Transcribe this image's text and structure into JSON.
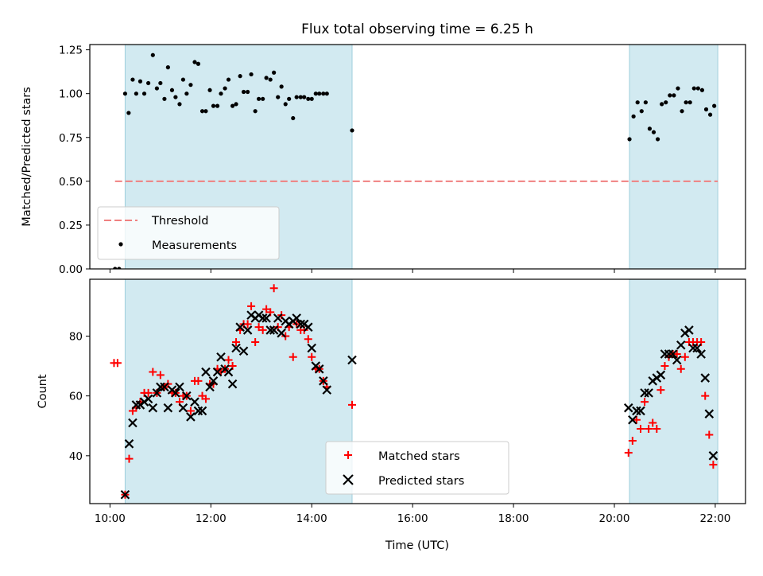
{
  "chart_data": {
    "title": "Flux total observing time = 6.25 h",
    "xlabel": "Time (UTC)",
    "x_unit": "hours UTC",
    "xlim": [
      9.6,
      22.6
    ],
    "x_ticks": [
      {
        "value": 10,
        "label": "10:00"
      },
      {
        "value": 12,
        "label": "12:00"
      },
      {
        "value": 14,
        "label": "14:00"
      },
      {
        "value": 16,
        "label": "16:00"
      },
      {
        "value": 18,
        "label": "18:00"
      },
      {
        "value": 20,
        "label": "20:00"
      },
      {
        "value": 22,
        "label": "22:00"
      }
    ],
    "shaded_intervals": [
      [
        10.3,
        14.8
      ],
      [
        20.3,
        22.05
      ]
    ],
    "shade_color": "#add8e6",
    "panels": [
      {
        "type": "scatter",
        "ylabel": "Matched/Predicted stars",
        "ylim": [
          0,
          1.28
        ],
        "y_ticks": [
          {
            "value": 0.0,
            "label": "0.00"
          },
          {
            "value": 0.25,
            "label": "0.25"
          },
          {
            "value": 0.5,
            "label": "0.50"
          },
          {
            "value": 0.75,
            "label": "0.75"
          },
          {
            "value": 1.0,
            "label": "1.00"
          },
          {
            "value": 1.25,
            "label": "1.25"
          }
        ],
        "legend": [
          "Threshold",
          "Measurements"
        ],
        "legend_position": "lower-left",
        "threshold": {
          "name": "Threshold",
          "y": 0.5,
          "x_range": [
            10.1,
            22.05
          ],
          "color": "#f08080"
        },
        "measurements": {
          "name": "Measurements",
          "color": "#000000",
          "points": [
            [
              10.1,
              0.0
            ],
            [
              10.18,
              0.0
            ],
            [
              10.3,
              1.0
            ],
            [
              10.37,
              0.89
            ],
            [
              10.45,
              1.08
            ],
            [
              10.52,
              1.0
            ],
            [
              10.6,
              1.07
            ],
            [
              10.68,
              1.0
            ],
            [
              10.76,
              1.06
            ],
            [
              10.85,
              1.22
            ],
            [
              10.93,
              1.03
            ],
            [
              11.0,
              1.06
            ],
            [
              11.08,
              0.97
            ],
            [
              11.15,
              1.15
            ],
            [
              11.23,
              1.02
            ],
            [
              11.3,
              0.98
            ],
            [
              11.38,
              0.94
            ],
            [
              11.45,
              1.08
            ],
            [
              11.52,
              1.0
            ],
            [
              11.6,
              1.05
            ],
            [
              11.68,
              1.18
            ],
            [
              11.75,
              1.17
            ],
            [
              11.83,
              0.9
            ],
            [
              11.9,
              0.9
            ],
            [
              11.98,
              1.02
            ],
            [
              12.05,
              0.93
            ],
            [
              12.13,
              0.93
            ],
            [
              12.2,
              1.0
            ],
            [
              12.28,
              1.03
            ],
            [
              12.35,
              1.08
            ],
            [
              12.43,
              0.93
            ],
            [
              12.5,
              0.94
            ],
            [
              12.58,
              1.1
            ],
            [
              12.65,
              1.01
            ],
            [
              12.73,
              1.01
            ],
            [
              12.8,
              1.11
            ],
            [
              12.88,
              0.9
            ],
            [
              12.95,
              0.97
            ],
            [
              13.03,
              0.97
            ],
            [
              13.1,
              1.09
            ],
            [
              13.18,
              1.08
            ],
            [
              13.25,
              1.12
            ],
            [
              13.33,
              0.98
            ],
            [
              13.4,
              1.04
            ],
            [
              13.48,
              0.94
            ],
            [
              13.55,
              0.97
            ],
            [
              13.63,
              0.86
            ],
            [
              13.7,
              0.98
            ],
            [
              13.78,
              0.98
            ],
            [
              13.85,
              0.98
            ],
            [
              13.93,
              0.97
            ],
            [
              14.0,
              0.97
            ],
            [
              14.08,
              1.0
            ],
            [
              14.15,
              1.0
            ],
            [
              14.23,
              1.0
            ],
            [
              14.3,
              1.0
            ],
            [
              14.8,
              0.79
            ],
            [
              20.3,
              0.74
            ],
            [
              20.38,
              0.87
            ],
            [
              20.46,
              0.95
            ],
            [
              20.54,
              0.9
            ],
            [
              20.62,
              0.95
            ],
            [
              20.7,
              0.8
            ],
            [
              20.78,
              0.78
            ],
            [
              20.86,
              0.74
            ],
            [
              20.94,
              0.94
            ],
            [
              21.02,
              0.95
            ],
            [
              21.1,
              0.99
            ],
            [
              21.18,
              0.99
            ],
            [
              21.26,
              1.03
            ],
            [
              21.34,
              0.9
            ],
            [
              21.42,
              0.95
            ],
            [
              21.5,
              0.95
            ],
            [
              21.58,
              1.03
            ],
            [
              21.66,
              1.03
            ],
            [
              21.74,
              1.02
            ],
            [
              21.82,
              0.91
            ],
            [
              21.9,
              0.88
            ],
            [
              21.98,
              0.93
            ]
          ]
        }
      },
      {
        "type": "scatter",
        "ylabel": "Count",
        "ylim": [
          24,
          99
        ],
        "y_ticks": [
          {
            "value": 40,
            "label": "40"
          },
          {
            "value": 60,
            "label": "60"
          },
          {
            "value": 80,
            "label": "80"
          }
        ],
        "legend": [
          "Matched stars",
          "Predicted stars"
        ],
        "legend_position": "lower-center",
        "series": [
          {
            "name": "Matched stars",
            "marker": "plus",
            "color": "#ff0000",
            "points": [
              [
                10.08,
                71
              ],
              [
                10.15,
                71
              ],
              [
                10.3,
                27
              ],
              [
                10.38,
                39
              ],
              [
                10.45,
                55
              ],
              [
                10.52,
                56
              ],
              [
                10.6,
                58
              ],
              [
                10.68,
                61
              ],
              [
                10.76,
                61
              ],
              [
                10.85,
                68
              ],
              [
                10.93,
                61
              ],
              [
                11.0,
                67
              ],
              [
                11.08,
                63
              ],
              [
                11.15,
                64
              ],
              [
                11.23,
                61
              ],
              [
                11.3,
                61
              ],
              [
                11.38,
                58
              ],
              [
                11.45,
                60
              ],
              [
                11.52,
                60
              ],
              [
                11.6,
                55
              ],
              [
                11.68,
                65
              ],
              [
                11.75,
                65
              ],
              [
                11.83,
                60
              ],
              [
                11.9,
                59
              ],
              [
                11.98,
                64
              ],
              [
                12.05,
                64
              ],
              [
                12.13,
                69
              ],
              [
                12.2,
                68
              ],
              [
                12.28,
                69
              ],
              [
                12.35,
                72
              ],
              [
                12.43,
                70
              ],
              [
                12.5,
                78
              ],
              [
                12.58,
                82
              ],
              [
                12.65,
                84
              ],
              [
                12.73,
                84
              ],
              [
                12.8,
                90
              ],
              [
                12.88,
                78
              ],
              [
                12.95,
                83
              ],
              [
                13.03,
                82
              ],
              [
                13.1,
                89
              ],
              [
                13.18,
                88
              ],
              [
                13.25,
                96
              ],
              [
                13.33,
                83
              ],
              [
                13.4,
                87
              ],
              [
                13.48,
                80
              ],
              [
                13.55,
                83
              ],
              [
                13.63,
                73
              ],
              [
                13.7,
                84
              ],
              [
                13.78,
                82
              ],
              [
                13.85,
                82
              ],
              [
                13.93,
                79
              ],
              [
                14.0,
                73
              ],
              [
                14.08,
                69
              ],
              [
                14.15,
                69
              ],
              [
                14.23,
                65
              ],
              [
                14.3,
                63
              ],
              [
                14.8,
                57
              ],
              [
                20.28,
                41
              ],
              [
                20.36,
                45
              ],
              [
                20.44,
                52
              ],
              [
                20.52,
                49
              ],
              [
                20.6,
                58
              ],
              [
                20.68,
                49
              ],
              [
                20.76,
                51
              ],
              [
                20.84,
                49
              ],
              [
                20.92,
                62
              ],
              [
                21.0,
                70
              ],
              [
                21.08,
                73
              ],
              [
                21.16,
                74
              ],
              [
                21.24,
                74
              ],
              [
                21.32,
                69
              ],
              [
                21.4,
                73
              ],
              [
                21.48,
                78
              ],
              [
                21.56,
                78
              ],
              [
                21.64,
                78
              ],
              [
                21.72,
                78
              ],
              [
                21.8,
                60
              ],
              [
                21.88,
                47
              ],
              [
                21.96,
                37
              ]
            ]
          },
          {
            "name": "Predicted stars",
            "marker": "x",
            "color": "#000000",
            "points": [
              [
                10.3,
                27
              ],
              [
                10.38,
                44
              ],
              [
                10.45,
                51
              ],
              [
                10.52,
                57
              ],
              [
                10.6,
                57
              ],
              [
                10.68,
                58
              ],
              [
                10.76,
                59
              ],
              [
                10.85,
                56
              ],
              [
                10.93,
                61
              ],
              [
                11.0,
                63
              ],
              [
                11.08,
                63
              ],
              [
                11.15,
                56
              ],
              [
                11.23,
                62
              ],
              [
                11.3,
                61
              ],
              [
                11.38,
                63
              ],
              [
                11.45,
                56
              ],
              [
                11.52,
                60
              ],
              [
                11.6,
                53
              ],
              [
                11.68,
                58
              ],
              [
                11.75,
                55
              ],
              [
                11.83,
                55
              ],
              [
                11.9,
                68
              ],
              [
                11.98,
                63
              ],
              [
                12.05,
                65
              ],
              [
                12.13,
                68
              ],
              [
                12.2,
                73
              ],
              [
                12.28,
                69
              ],
              [
                12.35,
                68
              ],
              [
                12.43,
                64
              ],
              [
                12.5,
                76
              ],
              [
                12.58,
                83
              ],
              [
                12.65,
                75
              ],
              [
                12.73,
                82
              ],
              [
                12.8,
                87
              ],
              [
                12.88,
                86
              ],
              [
                12.95,
                87
              ],
              [
                13.03,
                86
              ],
              [
                13.1,
                86
              ],
              [
                13.18,
                82
              ],
              [
                13.25,
                82
              ],
              [
                13.33,
                86
              ],
              [
                13.4,
                81
              ],
              [
                13.48,
                85
              ],
              [
                13.55,
                84
              ],
              [
                13.63,
                85
              ],
              [
                13.7,
                86
              ],
              [
                13.78,
                84
              ],
              [
                13.85,
                84
              ],
              [
                13.93,
                83
              ],
              [
                14.0,
                76
              ],
              [
                14.08,
                70
              ],
              [
                14.15,
                69
              ],
              [
                14.23,
                65
              ],
              [
                14.3,
                62
              ],
              [
                14.8,
                72
              ],
              [
                20.28,
                56
              ],
              [
                20.36,
                52
              ],
              [
                20.44,
                55
              ],
              [
                20.52,
                55
              ],
              [
                20.6,
                61
              ],
              [
                20.68,
                61
              ],
              [
                20.76,
                65
              ],
              [
                20.84,
                66
              ],
              [
                20.92,
                67
              ],
              [
                21.0,
                74
              ],
              [
                21.08,
                74
              ],
              [
                21.16,
                74
              ],
              [
                21.24,
                72
              ],
              [
                21.32,
                77
              ],
              [
                21.4,
                81
              ],
              [
                21.48,
                82
              ],
              [
                21.56,
                76
              ],
              [
                21.64,
                76
              ],
              [
                21.72,
                74
              ],
              [
                21.8,
                66
              ],
              [
                21.88,
                54
              ],
              [
                21.96,
                40
              ]
            ]
          }
        ]
      }
    ]
  }
}
